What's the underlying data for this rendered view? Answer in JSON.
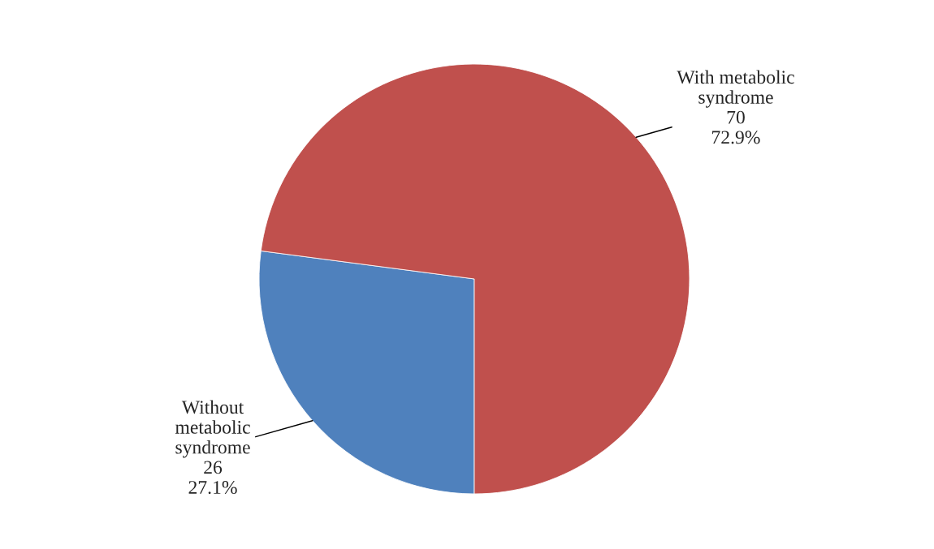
{
  "chart_data": {
    "type": "pie",
    "categories": [
      "Without\nmetabolic\nsyndrome",
      "With metabolic\nsyndrome"
    ],
    "values": [
      26,
      70
    ],
    "value_labels": [
      "26\n27.1%",
      "70\n72.9%"
    ],
    "colors": [
      "#4f81bd",
      "#c0504d"
    ],
    "legend": false
  }
}
